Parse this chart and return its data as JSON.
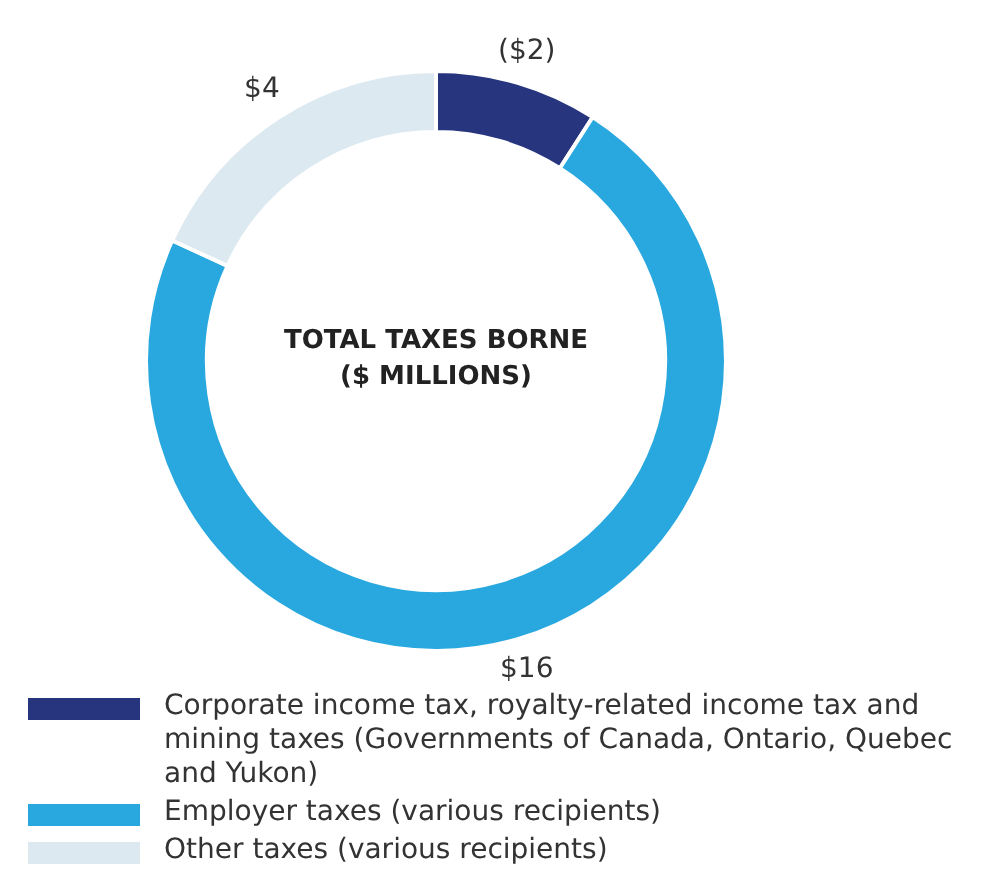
{
  "chart_data": {
    "type": "donut",
    "title": "TOTAL TAXES BORNE ($ MILLIONS)",
    "categories": [
      "Corporate income tax, royalty-related income tax and mining taxes (Governments of Canada, Ontario, Quebec and Yukon)",
      "Employer taxes (various recipients)",
      "Other taxes (various recipients)"
    ],
    "values": [
      2,
      16,
      4
    ],
    "value_labels": [
      "($2)",
      "$16",
      "$4"
    ],
    "colors": [
      "#27357e",
      "#29a8e0",
      "#dce9f0"
    ],
    "legend": "bottom"
  }
}
